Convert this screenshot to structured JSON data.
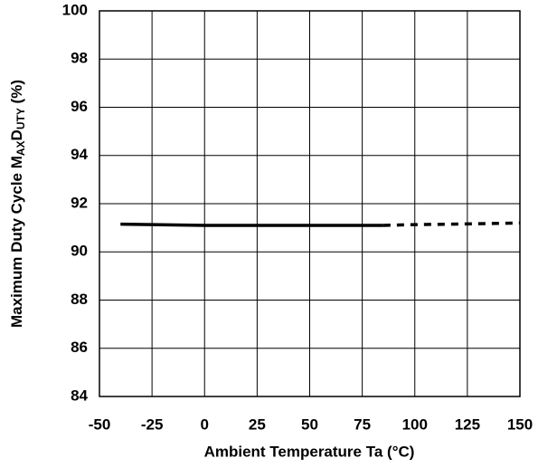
{
  "chart_data": {
    "type": "line",
    "xlabel": "Ambient Temperature  Ta  (°C)",
    "ylabel": [
      "Maximum Duty Cycle  M",
      "AX",
      "D",
      "UTY",
      "  (%)"
    ],
    "x": [
      -40,
      -25,
      0,
      25,
      50,
      75,
      85,
      100,
      125,
      150
    ],
    "series": [
      {
        "color": "#000000",
        "style": "solid",
        "values": [
          91.15,
          91.13,
          91.1,
          91.1,
          91.1,
          91.1,
          91.1,
          null,
          null,
          null
        ]
      },
      {
        "color": "#000000",
        "style": "dashed",
        "values": [
          null,
          null,
          null,
          null,
          null,
          null,
          91.1,
          91.13,
          91.16,
          91.2
        ]
      }
    ],
    "xlim": [
      -50,
      150
    ],
    "xticks": [
      -50,
      -25,
      0,
      25,
      50,
      75,
      100,
      125,
      150
    ],
    "ylim": [
      84,
      100
    ],
    "yticks": [
      84,
      86,
      88,
      90,
      92,
      94,
      96,
      98,
      100
    ],
    "grid": true
  }
}
